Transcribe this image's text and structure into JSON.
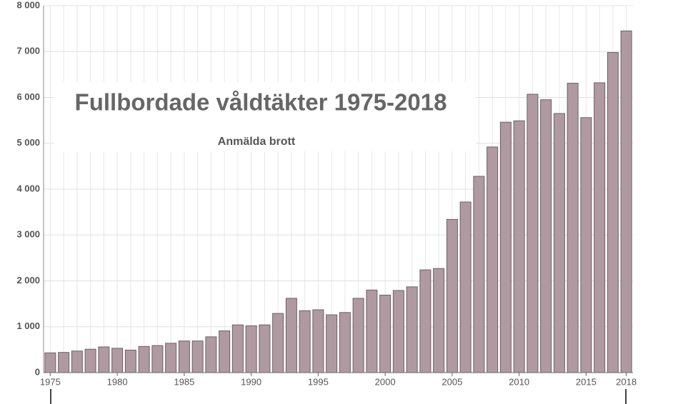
{
  "chart_data": {
    "type": "bar",
    "title": "Fullbordade våldtäkter 1975-2018",
    "subtitle": "Anmälda brott",
    "x": [
      1975,
      1976,
      1977,
      1978,
      1979,
      1980,
      1981,
      1982,
      1983,
      1984,
      1985,
      1986,
      1987,
      1988,
      1989,
      1990,
      1991,
      1992,
      1993,
      1994,
      1995,
      1996,
      1997,
      1998,
      1999,
      2000,
      2001,
      2002,
      2003,
      2004,
      2005,
      2006,
      2007,
      2008,
      2009,
      2010,
      2011,
      2012,
      2013,
      2014,
      2015,
      2016,
      2017,
      2018
    ],
    "values": [
      430,
      440,
      470,
      510,
      560,
      530,
      490,
      570,
      590,
      640,
      690,
      690,
      780,
      910,
      1040,
      1020,
      1040,
      1290,
      1620,
      1350,
      1370,
      1260,
      1310,
      1620,
      1800,
      1690,
      1790,
      1870,
      2240,
      2270,
      3340,
      3720,
      4280,
      4920,
      5460,
      5490,
      6070,
      5950,
      5650,
      6310,
      5560,
      6320,
      6980,
      7450
    ],
    "color": "#ae9aa0",
    "xlim": [
      1974.5,
      2018.5
    ],
    "xticks": [
      1975,
      1980,
      1985,
      1990,
      1995,
      2000,
      2005,
      2010,
      2015,
      2018
    ],
    "ylim": [
      0,
      8000
    ],
    "yticks": [
      0,
      {
        "value": 1000,
        "label": "1 000"
      },
      {
        "value": 2000,
        "label": "2 000"
      },
      {
        "value": 3000,
        "label": "3 000"
      },
      {
        "value": 4000,
        "label": "4 000"
      },
      {
        "value": 5000,
        "label": "5 000"
      },
      {
        "value": 6000,
        "label": "6 000"
      },
      {
        "value": 7000,
        "label": "7 000"
      },
      {
        "value": 8000,
        "label": "8 000"
      }
    ],
    "grid": true
  }
}
